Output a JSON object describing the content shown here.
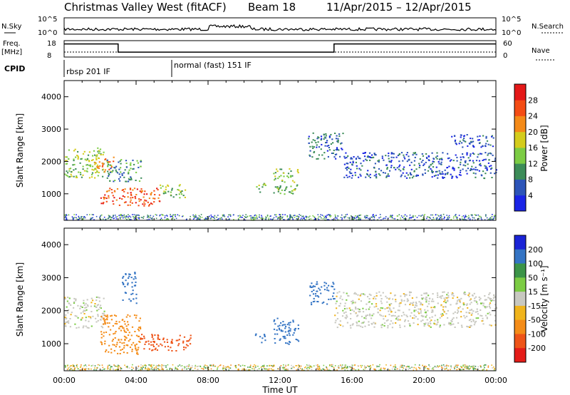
{
  "title": {
    "station": "Christmas Valley West (fitACF)",
    "beam": "Beam 18",
    "daterange": "11/Apr/2015 – 12/Apr/2015"
  },
  "header_panels": {
    "nsky_label": "N.Sky",
    "nsearch_label": "N.Search",
    "nsky_ticks": [
      "10^5",
      "10^0"
    ],
    "nsearch_ticks": [
      "10^5",
      "10^0"
    ],
    "freq_label_1": "Freq.",
    "freq_label_2": "[MHz]",
    "freq_ticks": [
      "18",
      "8"
    ],
    "nave_label": "Nave",
    "nave_ticks": [
      "60",
      "0"
    ],
    "cpid_label": "CPID",
    "cpid_segments": [
      {
        "label": "rbsp 201 IF",
        "start_hour": 0
      },
      {
        "label": "normal (fast) 151 IF",
        "start_hour": 6
      }
    ],
    "freq_steps": [
      {
        "from_hour": 0,
        "to_hour": 3,
        "mhz": 16
      },
      {
        "from_hour": 3,
        "to_hour": 15,
        "mhz": 11
      },
      {
        "from_hour": 15,
        "to_hour": 24,
        "mhz": 16
      }
    ]
  },
  "axes": {
    "xlabel": "Time UT",
    "ylabel": "Slant Range [km]",
    "xticks": [
      "00:00",
      "04:00",
      "08:00",
      "12:00",
      "16:00",
      "20:00",
      "00:00"
    ],
    "xlim_hours": [
      0,
      24
    ],
    "yticks": [
      "1000",
      "2000",
      "3000",
      "4000"
    ],
    "ylim_km": [
      180,
      4500
    ]
  },
  "power_colorbar": {
    "label": "Power [dB]",
    "ticks": [
      "4",
      "8",
      "12",
      "16",
      "20",
      "24",
      "28"
    ],
    "colors": [
      "#1a24e6",
      "#2c54b8",
      "#3c8c58",
      "#7ccc44",
      "#d4cc1c",
      "#f48a18",
      "#f44c14",
      "#e41818"
    ]
  },
  "velocity_colorbar": {
    "label": "Velocity [m s⁻¹]",
    "ticks": [
      "200",
      "100",
      "50",
      "15",
      "-15",
      "-50",
      "-100",
      "-200"
    ],
    "colors": [
      "#1a24d6",
      "#3474c4",
      "#3c9448",
      "#7ccc44",
      "#c8c8c0",
      "#f0b41c",
      "#f48c18",
      "#ee5418",
      "#e41c18"
    ]
  },
  "chart_data": {
    "type": "heatmap",
    "title": "Christmas Valley West (fitACF) Beam 18 11/Apr/2015 – 12/Apr/2015",
    "xlabel": "Time UT",
    "ylabel": "Slant Range [km]",
    "xlim": [
      0,
      24
    ],
    "ylim": [
      180,
      4500
    ],
    "power_regions_db": [
      {
        "t0": 0.0,
        "t1": 2.2,
        "r0": 1500,
        "r1": 2450,
        "db": 14
      },
      {
        "t0": 1.6,
        "t1": 2.8,
        "r0": 1700,
        "r1": 2150,
        "db": 21
      },
      {
        "t0": 2.3,
        "t1": 4.3,
        "r0": 1400,
        "r1": 2100,
        "db": 10
      },
      {
        "t0": 2.0,
        "t1": 5.3,
        "r0": 650,
        "r1": 1200,
        "db": 25
      },
      {
        "t0": 5.3,
        "t1": 6.8,
        "r0": 900,
        "r1": 1300,
        "db": 14
      },
      {
        "t0": 10.6,
        "t1": 11.2,
        "r0": 1050,
        "r1": 1350,
        "db": 15
      },
      {
        "t0": 11.6,
        "t1": 13.0,
        "r0": 1000,
        "r1": 1800,
        "db": 13
      },
      {
        "t0": 13.5,
        "t1": 15.5,
        "r0": 2100,
        "r1": 2900,
        "db": 7
      },
      {
        "t0": 15.5,
        "t1": 24.0,
        "r0": 1500,
        "r1": 2300,
        "db": 6
      },
      {
        "t0": 21.5,
        "t1": 24.0,
        "r0": 2450,
        "r1": 2850,
        "db": 5
      }
    ],
    "velocity_regions_ms": [
      {
        "t0": 0.0,
        "t1": 2.2,
        "r0": 1500,
        "r1": 2450,
        "v": 0
      },
      {
        "t0": 2.0,
        "t1": 4.2,
        "r0": 700,
        "r1": 1900,
        "v": -70
      },
      {
        "t0": 4.2,
        "t1": 7.0,
        "r0": 800,
        "r1": 1300,
        "v": -180
      },
      {
        "t0": 3.2,
        "t1": 4.0,
        "r0": 2200,
        "r1": 3200,
        "v": 180
      },
      {
        "t0": 10.6,
        "t1": 11.2,
        "r0": 1050,
        "r1": 1350,
        "v": 120
      },
      {
        "t0": 11.6,
        "t1": 13.0,
        "r0": 1000,
        "r1": 1800,
        "v": 180
      },
      {
        "t0": 13.6,
        "t1": 15.0,
        "r0": 2200,
        "r1": 2900,
        "v": 150
      },
      {
        "t0": 15.0,
        "t1": 24.0,
        "r0": 1500,
        "r1": 2600,
        "v": 0
      }
    ]
  }
}
